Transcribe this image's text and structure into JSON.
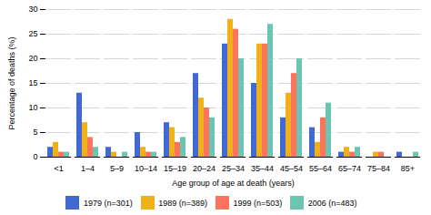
{
  "chart_data": {
    "type": "bar",
    "categories": [
      "<1",
      "1–4",
      "5–9",
      "10–14",
      "15–19",
      "20–24",
      "25–34",
      "35–44",
      "45–54",
      "55–64",
      "65–74",
      "75–84",
      "85+"
    ],
    "series": [
      {
        "name": "1979 (n=301)",
        "values": [
          2,
          13,
          2,
          5,
          7,
          17,
          23,
          15,
          8,
          6,
          1,
          0,
          1
        ]
      },
      {
        "name": "1989 (n=389)",
        "values": [
          3,
          7,
          1,
          2,
          6,
          12,
          28,
          23,
          13,
          3,
          2,
          1,
          0
        ]
      },
      {
        "name": "1999 (n=503)",
        "values": [
          1,
          4,
          0,
          1,
          3,
          10,
          26,
          23,
          17,
          8,
          1,
          1,
          0
        ]
      },
      {
        "name": "2006 (n=483)",
        "values": [
          1,
          2,
          1,
          1,
          4,
          8,
          20,
          27,
          20,
          11,
          2,
          0,
          1
        ]
      }
    ],
    "xlabel": "Age group of age at death (years)",
    "ylabel": "Percentage of deaths (%)",
    "ylim": [
      0,
      30
    ],
    "yticks": [
      0,
      5,
      10,
      15,
      20,
      25,
      30
    ],
    "grid": true,
    "legend": "bottom"
  }
}
